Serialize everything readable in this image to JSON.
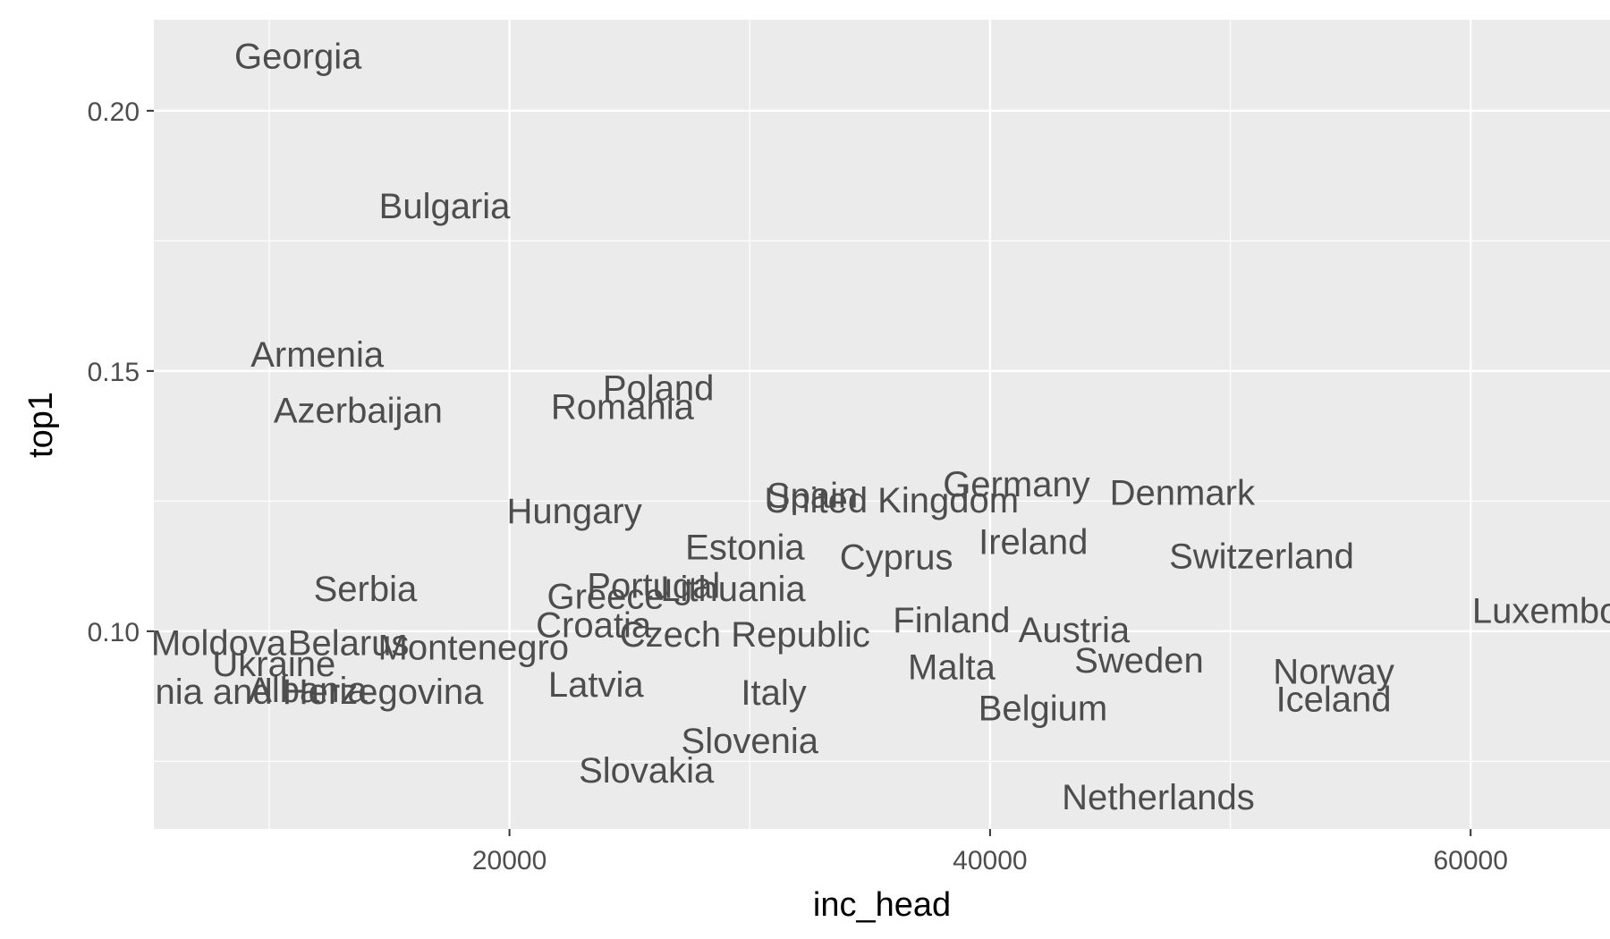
{
  "chart_data": {
    "type": "scatter",
    "xlabel": "inc_head",
    "ylabel": "top1",
    "xlim": [
      5200,
      65800
    ],
    "ylim": [
      0.062,
      0.2175
    ],
    "x_ticks": [
      20000,
      40000,
      60000
    ],
    "x_tick_labels": [
      "20000",
      "40000",
      "60000"
    ],
    "y_ticks": [
      0.1,
      0.15,
      0.2
    ],
    "y_tick_labels": [
      "0.10",
      "0.15",
      "0.20"
    ],
    "grid": true,
    "panel_background": "#ebebeb",
    "grid_color": "#ffffff",
    "label_color": "#4d4d4d",
    "points": [
      {
        "label": "Georgia",
        "x": 11200,
        "y": 0.2105
      },
      {
        "label": "Bulgaria",
        "x": 17300,
        "y": 0.1818
      },
      {
        "label": "Armenia",
        "x": 12000,
        "y": 0.1532
      },
      {
        "label": "Azerbaijan",
        "x": 13700,
        "y": 0.1425
      },
      {
        "label": "Poland",
        "x": 26200,
        "y": 0.1468
      },
      {
        "label": "Romania",
        "x": 24700,
        "y": 0.1432
      },
      {
        "label": "Hungary",
        "x": 22700,
        "y": 0.1232
      },
      {
        "label": "Spain",
        "x": 32600,
        "y": 0.1262
      },
      {
        "label": "United Kingdom",
        "x": 35900,
        "y": 0.1252
      },
      {
        "label": "Germany",
        "x": 41100,
        "y": 0.1283
      },
      {
        "label": "Denmark",
        "x": 48000,
        "y": 0.1267
      },
      {
        "label": "Estonia",
        "x": 29800,
        "y": 0.1162
      },
      {
        "label": "Ireland",
        "x": 41800,
        "y": 0.1172
      },
      {
        "label": "Cyprus",
        "x": 36100,
        "y": 0.1143
      },
      {
        "label": "Switzerland",
        "x": 51300,
        "y": 0.1145
      },
      {
        "label": "Serbia",
        "x": 14000,
        "y": 0.1082
      },
      {
        "label": "Portugal",
        "x": 26000,
        "y": 0.1088
      },
      {
        "label": "Lithuania",
        "x": 29300,
        "y": 0.1082
      },
      {
        "label": "Greece",
        "x": 24000,
        "y": 0.1068
      },
      {
        "label": "Luxembourg",
        "x": 64200,
        "y": 0.104
      },
      {
        "label": "Finland",
        "x": 38400,
        "y": 0.1022
      },
      {
        "label": "Austria",
        "x": 43500,
        "y": 0.1003
      },
      {
        "label": "Croatia",
        "x": 23500,
        "y": 0.1013
      },
      {
        "label": "Czech Republic",
        "x": 29800,
        "y": 0.0995
      },
      {
        "label": "Moldova",
        "x": 7900,
        "y": 0.0978
      },
      {
        "label": "Belarus",
        "x": 13300,
        "y": 0.0978
      },
      {
        "label": "Montenegro",
        "x": 18500,
        "y": 0.097
      },
      {
        "label": "Sweden",
        "x": 46200,
        "y": 0.0945
      },
      {
        "label": "Ukraine",
        "x": 10200,
        "y": 0.0938
      },
      {
        "label": "Malta",
        "x": 38400,
        "y": 0.0932
      },
      {
        "label": "Norway",
        "x": 54300,
        "y": 0.0923
      },
      {
        "label": "Bosnia and Herzegovina",
        "x": 10800,
        "y": 0.0885
      },
      {
        "label": "Albania",
        "x": 11600,
        "y": 0.0888
      },
      {
        "label": "Latvia",
        "x": 23600,
        "y": 0.0898
      },
      {
        "label": "Italy",
        "x": 31000,
        "y": 0.0883
      },
      {
        "label": "Iceland",
        "x": 54300,
        "y": 0.087
      },
      {
        "label": "Belgium",
        "x": 42200,
        "y": 0.0853
      },
      {
        "label": "Slovenia",
        "x": 30000,
        "y": 0.079
      },
      {
        "label": "Slovakia",
        "x": 25700,
        "y": 0.0733
      },
      {
        "label": "Netherlands",
        "x": 47000,
        "y": 0.0682
      }
    ]
  }
}
